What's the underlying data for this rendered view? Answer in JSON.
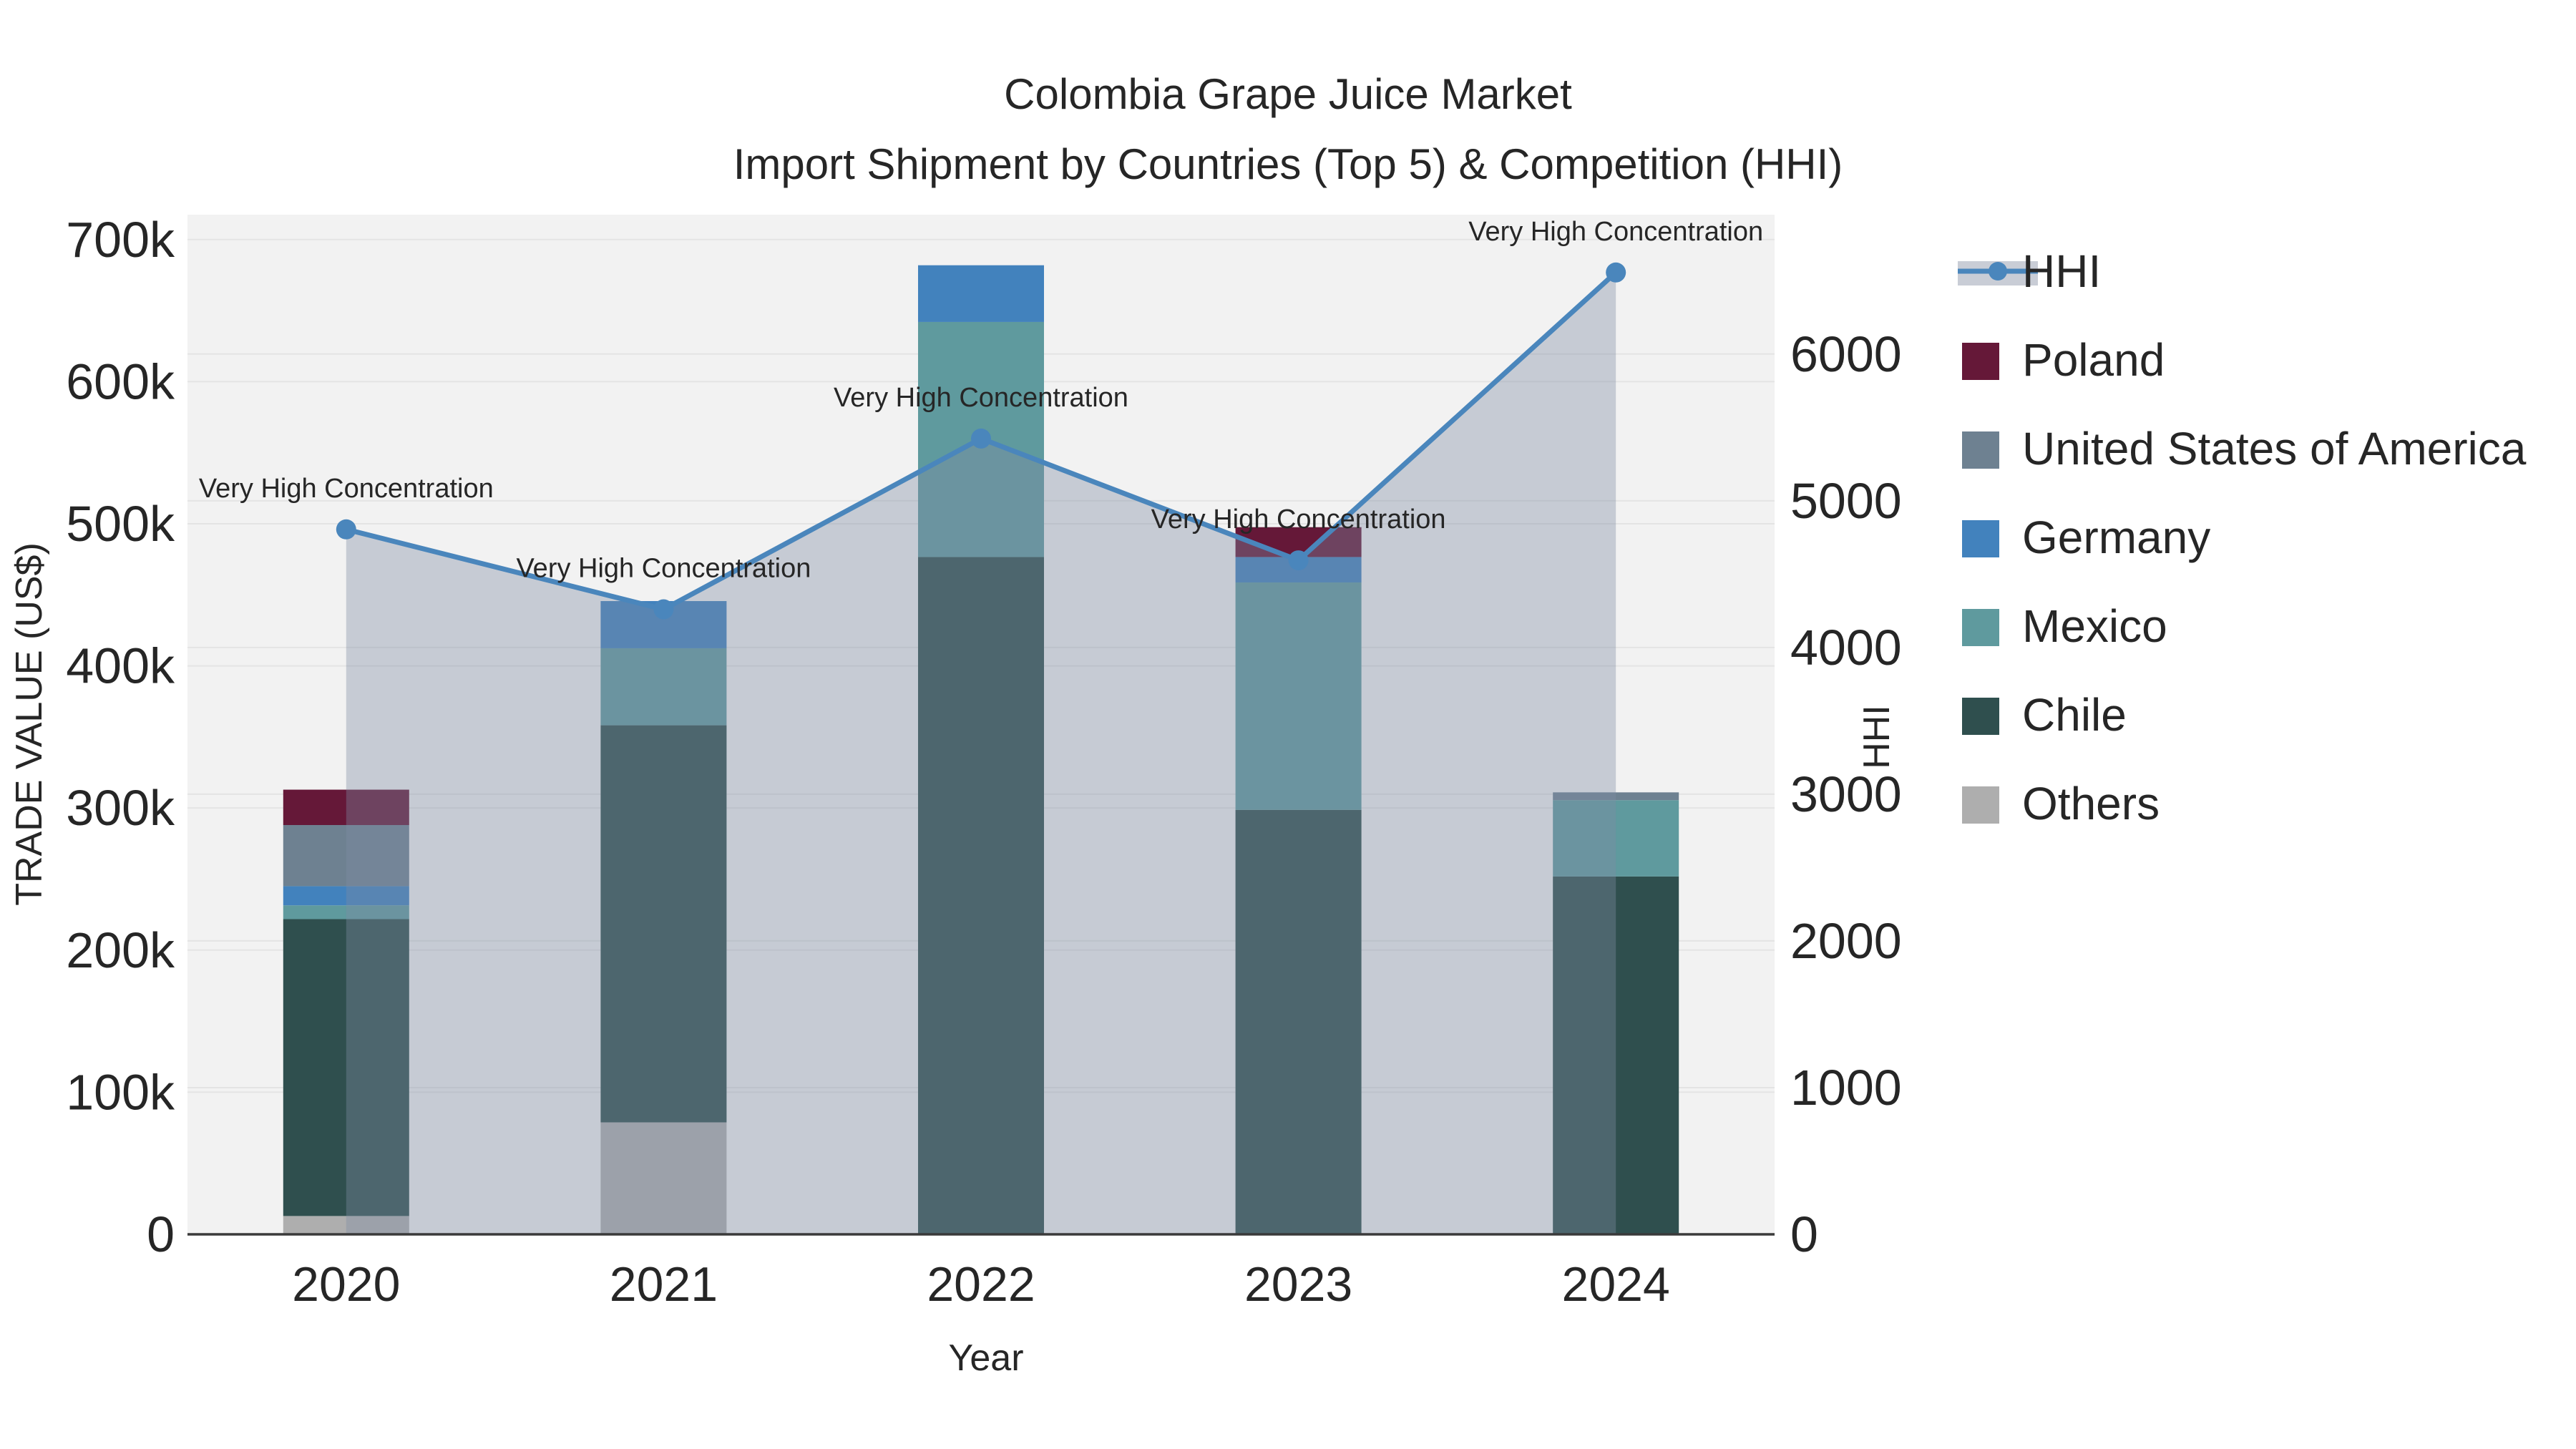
{
  "title": {
    "line1": "Colombia Grape Juice Market",
    "line2": "Import Shipment by Countries (Top 5) & Competition (HHI)"
  },
  "chart_data": {
    "type": "bar+line",
    "subtype": "stacked bars (left axis) with HHI line and area fill (right axis)",
    "x": [
      "2020",
      "2021",
      "2022",
      "2023",
      "2024"
    ],
    "x_label": "Year",
    "bar_series_bottom_to_top": [
      {
        "name": "Others",
        "color": "#aeaeae",
        "values": [
          12900,
          78800,
          0,
          0,
          0
        ]
      },
      {
        "name": "Chile",
        "color": "#2f4f4e",
        "values": [
          208900,
          279400,
          476600,
          298700,
          251800
        ]
      },
      {
        "name": "Mexico",
        "color": "#5f9a9e",
        "values": [
          9700,
          54200,
          165400,
          160000,
          53700
        ]
      },
      {
        "name": "Germany",
        "color": "#4282bd",
        "values": [
          13500,
          33200,
          39900,
          17900,
          0
        ]
      },
      {
        "name": "United States of America",
        "color": "#6e8191",
        "values": [
          43000,
          0,
          0,
          0,
          5500
        ]
      },
      {
        "name": "Poland",
        "color": "#651838",
        "values": [
          24900,
          0,
          0,
          21000,
          0
        ]
      }
    ],
    "line_series": {
      "name": "HHI",
      "color": "#4a86bc",
      "area_fill": "rgba(125,140,162,0.38)",
      "legend_band_color": "#c9cdd6",
      "values": [
        4805,
        4260,
        5424,
        4594,
        6556
      ]
    },
    "annotations": [
      "Very High Concentration",
      "Very High Concentration",
      "Very High Concentration",
      "Very High Concentration",
      "Very High Concentration"
    ],
    "y_left": {
      "label": "TRADE VALUE (US$)",
      "tick_labels": [
        "0",
        "100k",
        "200k",
        "300k",
        "400k",
        "500k",
        "600k",
        "700k"
      ],
      "tick_values": [
        0,
        100000,
        200000,
        300000,
        400000,
        500000,
        600000,
        700000
      ],
      "axis_max": 717500
    },
    "y_right": {
      "label": "HHI",
      "tick_labels": [
        "0",
        "1000",
        "2000",
        "3000",
        "4000",
        "5000",
        "6000"
      ],
      "tick_values": [
        0,
        1000,
        2000,
        3000,
        4000,
        5000,
        6000
      ],
      "axis_max": 6950
    },
    "legend": [
      {
        "label": "HHI",
        "swatch": "line"
      },
      {
        "label": "Poland",
        "swatch": "Poland"
      },
      {
        "label": "United States of America",
        "swatch": "United States of America"
      },
      {
        "label": "Germany",
        "swatch": "Germany"
      },
      {
        "label": "Mexico",
        "swatch": "Mexico"
      },
      {
        "label": "Chile",
        "swatch": "Chile"
      },
      {
        "label": "Others",
        "swatch": "Others"
      }
    ],
    "layout_hints": {
      "plot_bg": "#f2f2f2",
      "grid_color": "#e4e4e4",
      "axis_line_color": "#3a3a3a",
      "legend_position": "right",
      "grid": "on (both axes, horizontal)"
    }
  }
}
